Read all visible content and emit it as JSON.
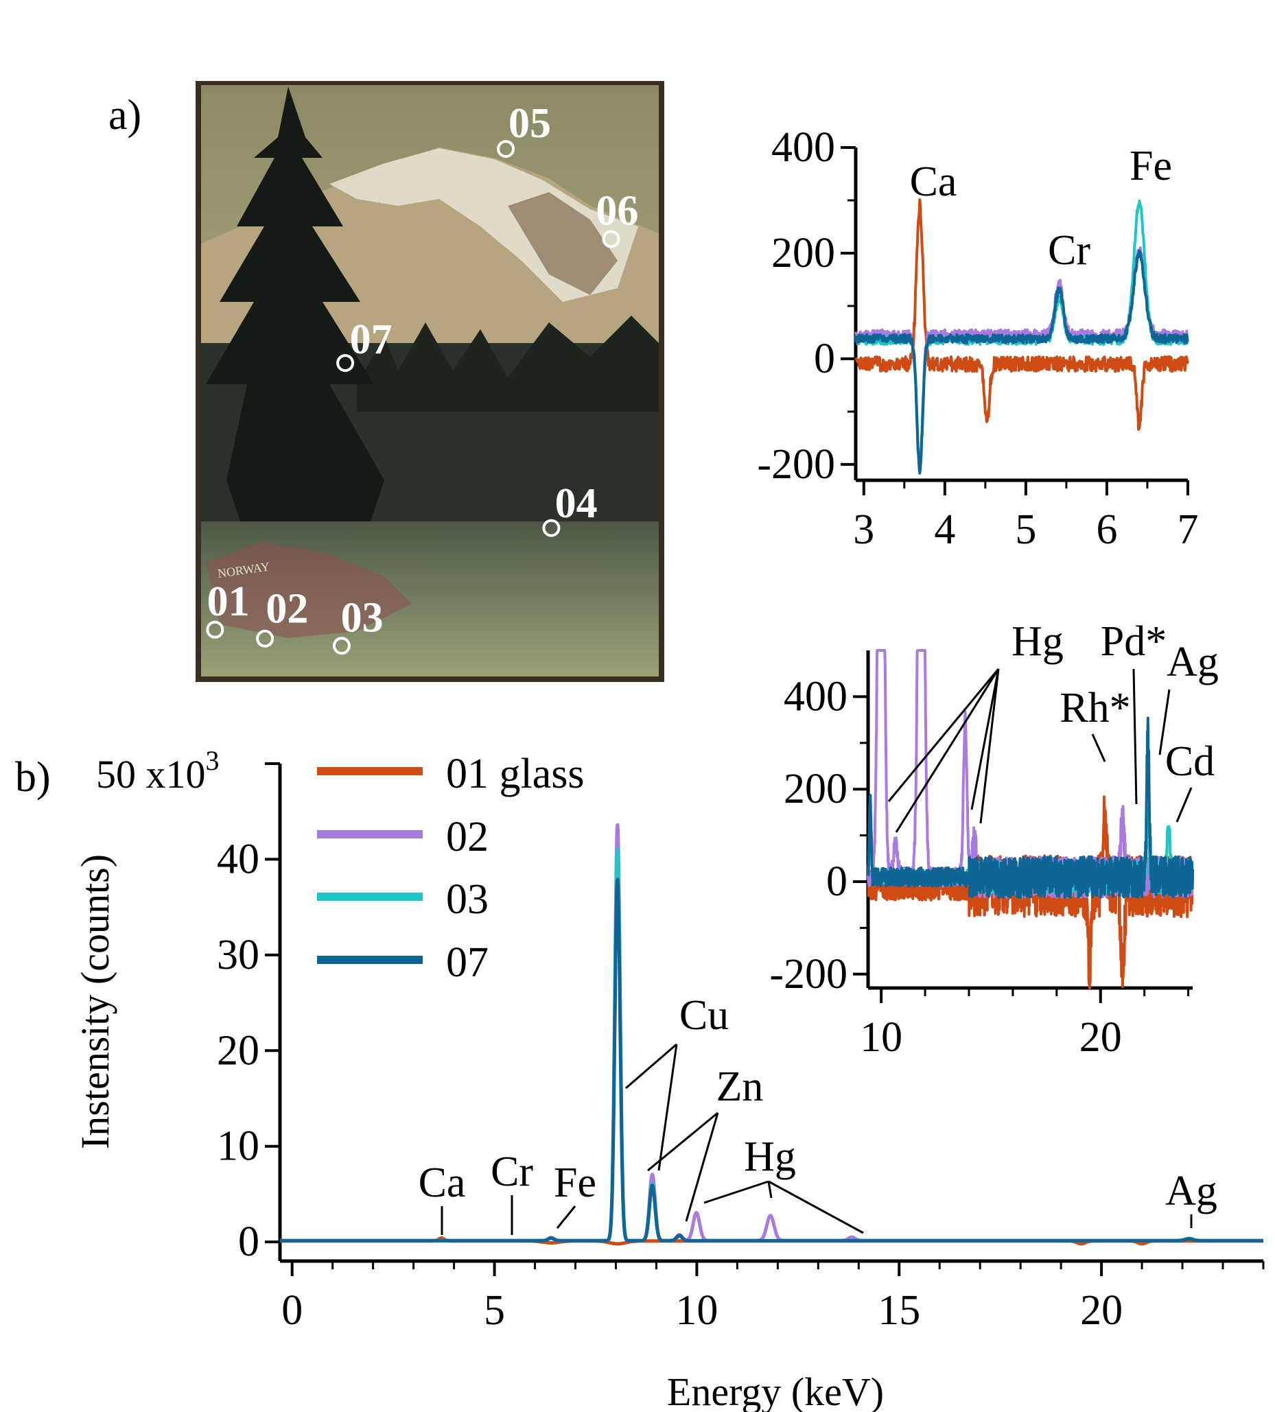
{
  "panel_a": {
    "label": "a)",
    "photo_colors": {
      "sky": "#cfc8a0",
      "mountain": "#b5a47c",
      "forest": "#222a24",
      "meadow": "#8f9670",
      "frame": "#3a2e22"
    },
    "signature": "NORWAY",
    "spots": [
      {
        "label": "01"
      },
      {
        "label": "02"
      },
      {
        "label": "03"
      },
      {
        "label": "04"
      },
      {
        "label": "05"
      },
      {
        "label": "06"
      },
      {
        "label": "07"
      }
    ]
  },
  "panel_b": {
    "label": "b)"
  },
  "colors": {
    "01 glass": "#d04a14",
    "02": "#a97be0",
    "03": "#1fc6c6",
    "07": "#0e6596"
  },
  "chart_data": [
    {
      "id": "main",
      "type": "line",
      "xlabel": "Energy (keV)",
      "ylabel": "Instensity (counts)",
      "y_multiplier": "x10",
      "y_multiplier_exp": "3",
      "xlim": [
        -0.3,
        24
      ],
      "ylim": [
        -2,
        50
      ],
      "xticks": [
        0,
        5,
        10,
        15,
        20
      ],
      "yticks": [
        0,
        10,
        20,
        30,
        40,
        50
      ],
      "legend": [
        "01 glass",
        "02",
        "03",
        "07"
      ],
      "legend_position": "top-left",
      "series": [
        {
          "name": "01 glass",
          "baseline": 0.1,
          "peaks": [
            [
              3.69,
              0.3,
              0.07
            ],
            [
              6.4,
              -0.2,
              0.2
            ],
            [
              8.04,
              -0.3,
              0.2
            ],
            [
              19.5,
              -0.3,
              0.1
            ],
            [
              21.0,
              -0.3,
              0.1
            ]
          ]
        },
        {
          "name": "02",
          "baseline": 0.15,
          "peaks": [
            [
              6.4,
              0.3,
              0.07
            ],
            [
              8.04,
              43.5,
              0.065
            ],
            [
              8.9,
              6.9,
              0.07
            ],
            [
              9.57,
              0.6,
              0.07
            ],
            [
              9.99,
              2.9,
              0.08
            ],
            [
              11.82,
              2.6,
              0.09
            ],
            [
              13.83,
              0.35,
              0.08
            ],
            [
              22.16,
              0.2,
              0.1
            ]
          ]
        },
        {
          "name": "03",
          "baseline": 0.12,
          "peaks": [
            [
              6.4,
              0.25,
              0.07
            ],
            [
              8.04,
              41.0,
              0.065
            ],
            [
              8.9,
              6.0,
              0.07
            ],
            [
              9.57,
              0.5,
              0.07
            ],
            [
              22.16,
              0.25,
              0.1
            ]
          ]
        },
        {
          "name": "07",
          "baseline": 0.12,
          "peaks": [
            [
              6.4,
              0.3,
              0.07
            ],
            [
              8.04,
              37.8,
              0.065
            ],
            [
              8.9,
              5.8,
              0.07
            ],
            [
              9.57,
              0.55,
              0.07
            ],
            [
              22.16,
              0.2,
              0.1
            ]
          ]
        }
      ],
      "annotations": [
        {
          "text": "Ca",
          "x": 3.69
        },
        {
          "text": "Cr",
          "x": 5.41
        },
        {
          "text": "Fe",
          "x": 6.4
        },
        {
          "text": "Cu",
          "x": 8.04
        },
        {
          "text": "Zn",
          "x": 9.57
        },
        {
          "text": "Hg",
          "x": 11.82
        },
        {
          "text": "Ag",
          "x": 22.16
        }
      ]
    },
    {
      "id": "inset_low",
      "type": "line",
      "xlim": [
        2.9,
        7.0
      ],
      "ylim": [
        -230,
        400
      ],
      "xticks": [
        3,
        4,
        5,
        6,
        7
      ],
      "yticks": [
        -200,
        0,
        200,
        400
      ],
      "series": [
        {
          "name": "01 glass",
          "baseline": -10,
          "noise": 14,
          "peaks": [
            [
              3.69,
              300,
              0.04
            ],
            [
              4.52,
              -110,
              0.03
            ],
            [
              6.4,
              -120,
              0.03
            ]
          ]
        },
        {
          "name": "02",
          "baseline": 45,
          "noise": 10,
          "peaks": [
            [
              3.69,
              -250,
              0.035
            ],
            [
              5.41,
              100,
              0.05
            ],
            [
              6.4,
              160,
              0.07
            ]
          ]
        },
        {
          "name": "03",
          "baseline": 35,
          "noise": 8,
          "peaks": [
            [
              3.69,
              -240,
              0.035
            ],
            [
              5.41,
              80,
              0.05
            ],
            [
              6.4,
              260,
              0.065
            ]
          ]
        },
        {
          "name": "07",
          "baseline": 38,
          "noise": 8,
          "peaks": [
            [
              3.69,
              -250,
              0.035
            ],
            [
              5.41,
              95,
              0.05
            ],
            [
              6.4,
              160,
              0.07
            ]
          ]
        }
      ],
      "annotations": [
        {
          "text": "Ca",
          "x": 3.69
        },
        {
          "text": "Cr",
          "x": 5.41
        },
        {
          "text": "Fe",
          "x": 6.4
        }
      ]
    },
    {
      "id": "inset_high",
      "type": "line",
      "xlim": [
        9.4,
        24.2
      ],
      "ylim": [
        -230,
        500
      ],
      "xticks": [
        10,
        20
      ],
      "yticks": [
        -200,
        0,
        200,
        400
      ],
      "series": [
        {
          "name": "01 glass",
          "baseline": -10,
          "noise": 30,
          "noise_from": 14,
          "peaks": [
            [
              19.5,
              -180,
              0.08
            ],
            [
              20.2,
              150,
              0.08
            ],
            [
              21.0,
              -200,
              0.08
            ]
          ]
        },
        {
          "name": "02",
          "baseline": 10,
          "noise": 20,
          "noise_from": 14,
          "peaks": [
            [
              9.99,
              1500,
              0.12
            ],
            [
              10.65,
              70,
              0.1
            ],
            [
              11.82,
              1500,
              0.12
            ],
            [
              13.83,
              340,
              0.08
            ],
            [
              14.25,
              70,
              0.08
            ],
            [
              21.0,
              120,
              0.08
            ]
          ]
        },
        {
          "name": "03",
          "baseline": 10,
          "noise": 16,
          "noise_from": 14,
          "peaks": [
            [
              9.5,
              160,
              0.04
            ],
            [
              22.16,
              120,
              0.07
            ],
            [
              23.1,
              100,
              0.07
            ]
          ]
        },
        {
          "name": "07",
          "baseline": 10,
          "noise": 20,
          "noise_from": 14,
          "peaks": [
            [
              9.5,
              170,
              0.04
            ],
            [
              22.16,
              300,
              0.06
            ]
          ]
        }
      ],
      "annotations": [
        {
          "text": "Hg",
          "x": 13.8
        },
        {
          "text": "Pd*",
          "x": 21.1
        },
        {
          "text": "Ag",
          "x": 22.16
        },
        {
          "text": "Rh*",
          "x": 20.2
        },
        {
          "text": "Cd",
          "x": 23.1
        }
      ]
    }
  ]
}
